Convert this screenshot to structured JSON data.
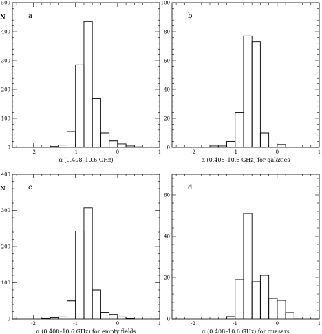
{
  "chart_data": [
    {
      "type": "bar",
      "panel_label": "a",
      "ylabel": "N",
      "xlabel": "α (0.408–10.6 GHz)",
      "xlim": [
        -2.5,
        1
      ],
      "ylim": [
        0,
        500
      ],
      "xticks": [
        -2,
        -1,
        0,
        1
      ],
      "yticks": [
        0,
        100,
        200,
        300,
        400,
        500
      ],
      "bin_width": 0.2,
      "bins": [
        {
          "x0": -2.0,
          "y": 0
        },
        {
          "x0": -1.8,
          "y": 1
        },
        {
          "x0": -1.6,
          "y": 3
        },
        {
          "x0": -1.4,
          "y": 8
        },
        {
          "x0": -1.2,
          "y": 55
        },
        {
          "x0": -1.0,
          "y": 285
        },
        {
          "x0": -0.8,
          "y": 435
        },
        {
          "x0": -0.6,
          "y": 168
        },
        {
          "x0": -0.4,
          "y": 50
        },
        {
          "x0": -0.2,
          "y": 22
        },
        {
          "x0": 0.0,
          "y": 12
        },
        {
          "x0": 0.2,
          "y": 5
        },
        {
          "x0": 0.4,
          "y": 2
        }
      ]
    },
    {
      "type": "bar",
      "panel_label": "b",
      "ylabel": "",
      "xlabel": "α (0.408–10.6 GHz) for galaxies",
      "xlim": [
        -2.5,
        1
      ],
      "ylim": [
        0,
        100
      ],
      "xticks": [
        -2,
        -1,
        0,
        1
      ],
      "yticks": [
        0,
        20,
        40,
        60,
        80,
        100
      ],
      "bin_width": 0.2,
      "bins": [
        {
          "x0": -1.8,
          "y": 0
        },
        {
          "x0": -1.6,
          "y": 1
        },
        {
          "x0": -1.4,
          "y": 1
        },
        {
          "x0": -1.2,
          "y": 4
        },
        {
          "x0": -1.0,
          "y": 24
        },
        {
          "x0": -0.8,
          "y": 77
        },
        {
          "x0": -0.6,
          "y": 73
        },
        {
          "x0": -0.4,
          "y": 10
        },
        {
          "x0": -0.2,
          "y": 0
        },
        {
          "x0": 0.0,
          "y": 2
        },
        {
          "x0": 0.2,
          "y": 0
        }
      ]
    },
    {
      "type": "bar",
      "panel_label": "c",
      "ylabel": "N",
      "xlabel": "α (0.408–10.6 GHz) for empty fields",
      "xlim": [
        -2.5,
        1
      ],
      "ylim": [
        0,
        400
      ],
      "xticks": [
        -2,
        -1,
        0,
        1
      ],
      "yticks": [
        0,
        100,
        200,
        300,
        400
      ],
      "bin_width": 0.2,
      "bins": [
        {
          "x0": -1.8,
          "y": 1
        },
        {
          "x0": -1.6,
          "y": 3
        },
        {
          "x0": -1.4,
          "y": 5
        },
        {
          "x0": -1.2,
          "y": 50
        },
        {
          "x0": -1.0,
          "y": 243
        },
        {
          "x0": -0.8,
          "y": 307
        },
        {
          "x0": -0.6,
          "y": 80
        },
        {
          "x0": -0.4,
          "y": 18
        },
        {
          "x0": -0.2,
          "y": 12
        },
        {
          "x0": 0.0,
          "y": 5
        },
        {
          "x0": 0.2,
          "y": 1
        }
      ]
    },
    {
      "type": "bar",
      "panel_label": "d",
      "ylabel": "",
      "xlabel": "α (0.408–10.6 GHz) for quasars",
      "xlim": [
        -2.5,
        1
      ],
      "ylim": [
        0,
        70
      ],
      "xticks": [
        -2,
        -1,
        0,
        1
      ],
      "yticks": [
        0,
        20,
        40,
        60
      ],
      "bin_width": 0.2,
      "bins": [
        {
          "x0": -1.2,
          "y": 1
        },
        {
          "x0": -1.0,
          "y": 19
        },
        {
          "x0": -0.8,
          "y": 51
        },
        {
          "x0": -0.6,
          "y": 18
        },
        {
          "x0": -0.4,
          "y": 21
        },
        {
          "x0": -0.2,
          "y": 10
        },
        {
          "x0": 0.0,
          "y": 9
        },
        {
          "x0": 0.2,
          "y": 3
        },
        {
          "x0": 0.4,
          "y": 0
        }
      ]
    }
  ]
}
